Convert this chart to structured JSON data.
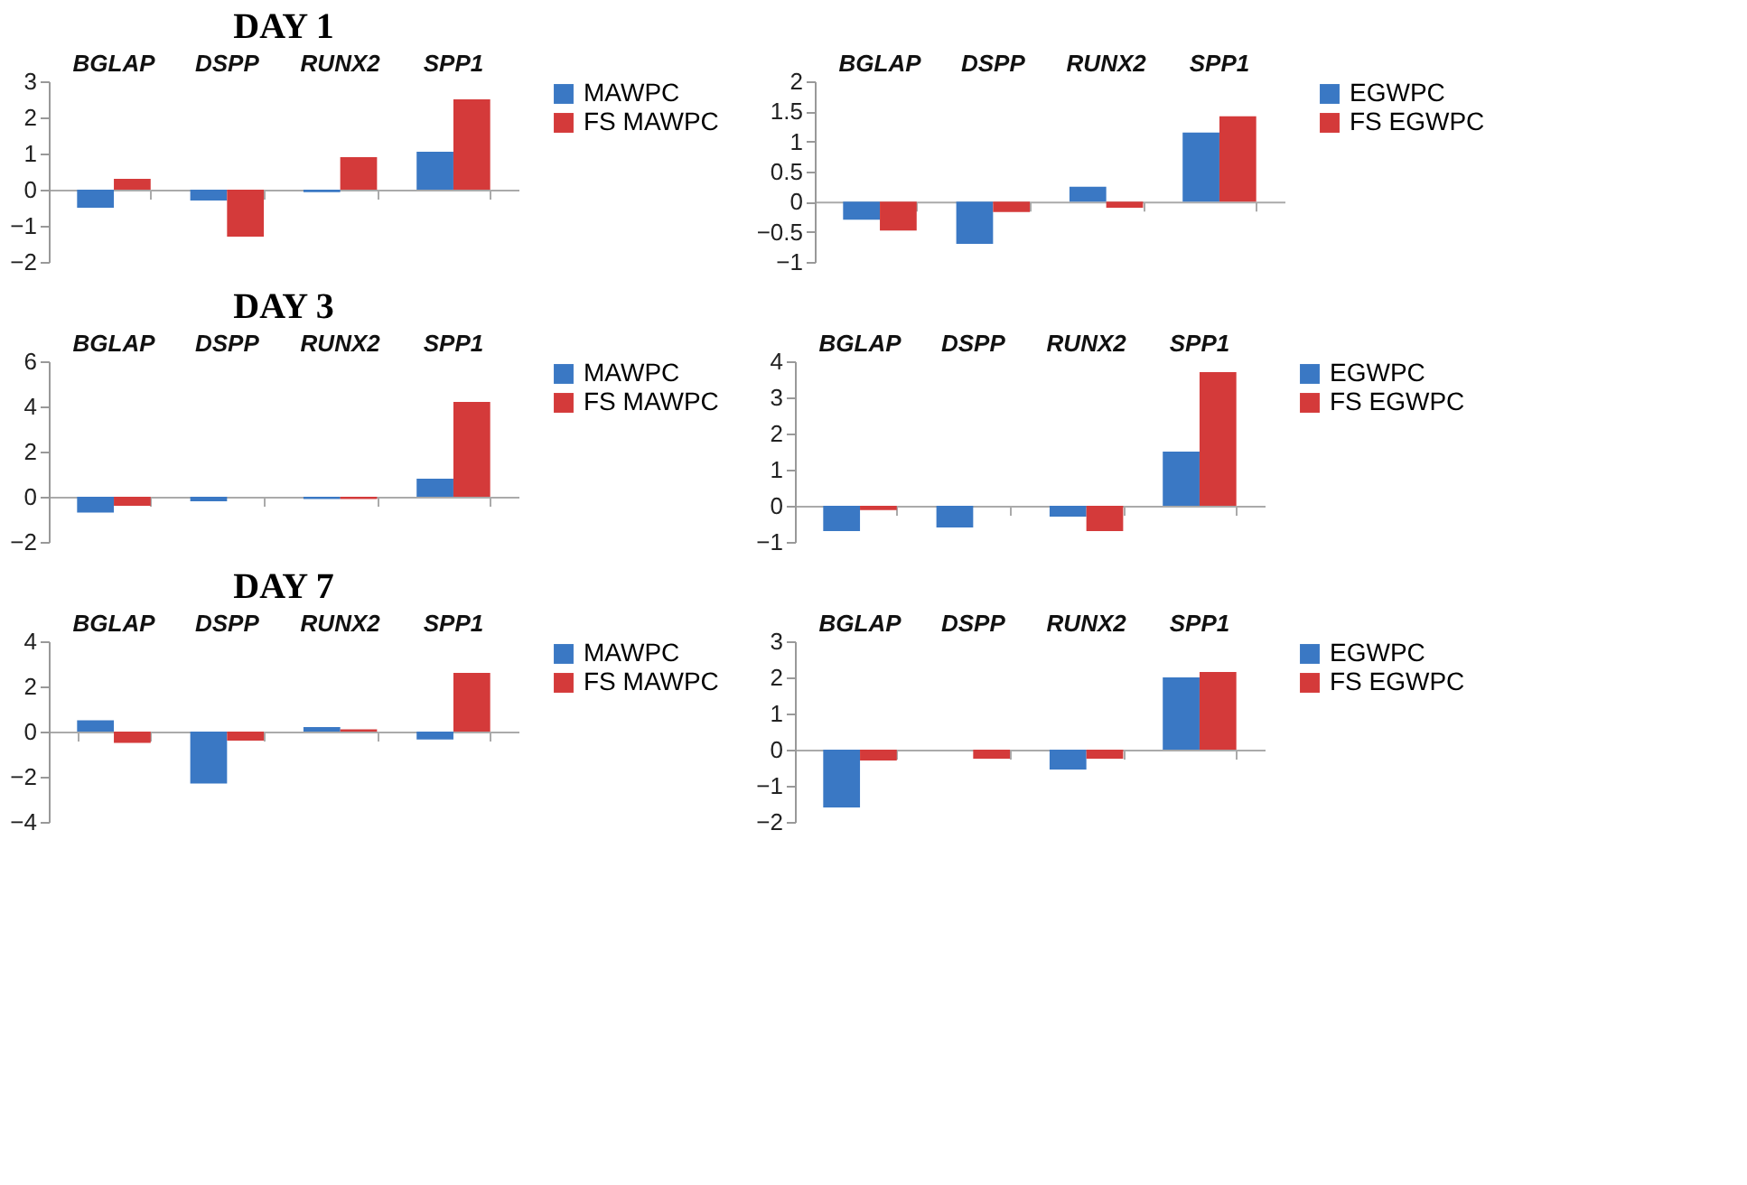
{
  "chart_data": [
    {
      "type": "bar",
      "title": "DAY 1",
      "categories": [
        "BGLAP",
        "DSPP",
        "RUNX2",
        "SPP1"
      ],
      "ylim": [
        -2,
        3
      ],
      "yticks": [
        -2,
        -1,
        0,
        1,
        2,
        3
      ],
      "legend": "right",
      "series": [
        {
          "name": "MAWPC",
          "color": "#3a78c4",
          "values": [
            -0.5,
            -0.3,
            -0.07,
            1.05
          ]
        },
        {
          "name": "FS MAWPC",
          "color": "#d43a3a",
          "values": [
            0.3,
            -1.3,
            0.9,
            2.5
          ]
        }
      ]
    },
    {
      "type": "bar",
      "categories": [
        "BGLAP",
        "DSPP",
        "RUNX2",
        "SPP1"
      ],
      "ylim": [
        -1,
        2
      ],
      "yticks": [
        -1,
        -0.5,
        0,
        0.5,
        1,
        1.5,
        2
      ],
      "legend": "right",
      "series": [
        {
          "name": "EGWPC",
          "color": "#3a78c4",
          "values": [
            -0.3,
            -0.7,
            0.25,
            1.15
          ]
        },
        {
          "name": "FS EGWPC",
          "color": "#d43a3a",
          "values": [
            -0.48,
            -0.17,
            -0.1,
            1.42
          ]
        }
      ]
    },
    {
      "type": "bar",
      "title": "DAY 3",
      "categories": [
        "BGLAP",
        "DSPP",
        "RUNX2",
        "SPP1"
      ],
      "ylim": [
        -2,
        6
      ],
      "yticks": [
        -2,
        0,
        2,
        4,
        6
      ],
      "legend": "right",
      "series": [
        {
          "name": "MAWPC",
          "color": "#3a78c4",
          "values": [
            -0.7,
            -0.2,
            -0.1,
            0.8
          ]
        },
        {
          "name": "FS MAWPC",
          "color": "#d43a3a",
          "values": [
            -0.4,
            0,
            -0.1,
            4.2
          ]
        }
      ]
    },
    {
      "type": "bar",
      "categories": [
        "BGLAP",
        "DSPP",
        "RUNX2",
        "SPP1"
      ],
      "ylim": [
        -1,
        4
      ],
      "yticks": [
        -1,
        0,
        1,
        2,
        3,
        4
      ],
      "legend": "right",
      "series": [
        {
          "name": "EGWPC",
          "color": "#3a78c4",
          "values": [
            -0.7,
            -0.6,
            -0.3,
            1.5
          ]
        },
        {
          "name": "FS EGWPC",
          "color": "#d43a3a",
          "values": [
            -0.12,
            0,
            -0.7,
            3.7
          ]
        }
      ]
    },
    {
      "type": "bar",
      "title": "DAY 7",
      "categories": [
        "BGLAP",
        "DSPP",
        "RUNX2",
        "SPP1"
      ],
      "ylim": [
        -4,
        4
      ],
      "yticks": [
        -4,
        -2,
        0,
        2,
        4
      ],
      "legend": "right",
      "series": [
        {
          "name": "MAWPC",
          "color": "#3a78c4",
          "values": [
            0.5,
            -2.3,
            0.2,
            -0.35
          ]
        },
        {
          "name": "FS MAWPC",
          "color": "#d43a3a",
          "values": [
            -0.5,
            -0.4,
            0.1,
            2.6
          ]
        }
      ]
    },
    {
      "type": "bar",
      "categories": [
        "BGLAP",
        "DSPP",
        "RUNX2",
        "SPP1"
      ],
      "ylim": [
        -2,
        3
      ],
      "yticks": [
        -2,
        -1,
        0,
        1,
        2,
        3
      ],
      "legend": "right",
      "series": [
        {
          "name": "EGWPC",
          "color": "#3a78c4",
          "values": [
            -1.6,
            0,
            -0.55,
            2.0
          ]
        },
        {
          "name": "FS EGWPC",
          "color": "#d43a3a",
          "values": [
            -0.3,
            -0.25,
            -0.25,
            2.15
          ]
        }
      ]
    }
  ]
}
